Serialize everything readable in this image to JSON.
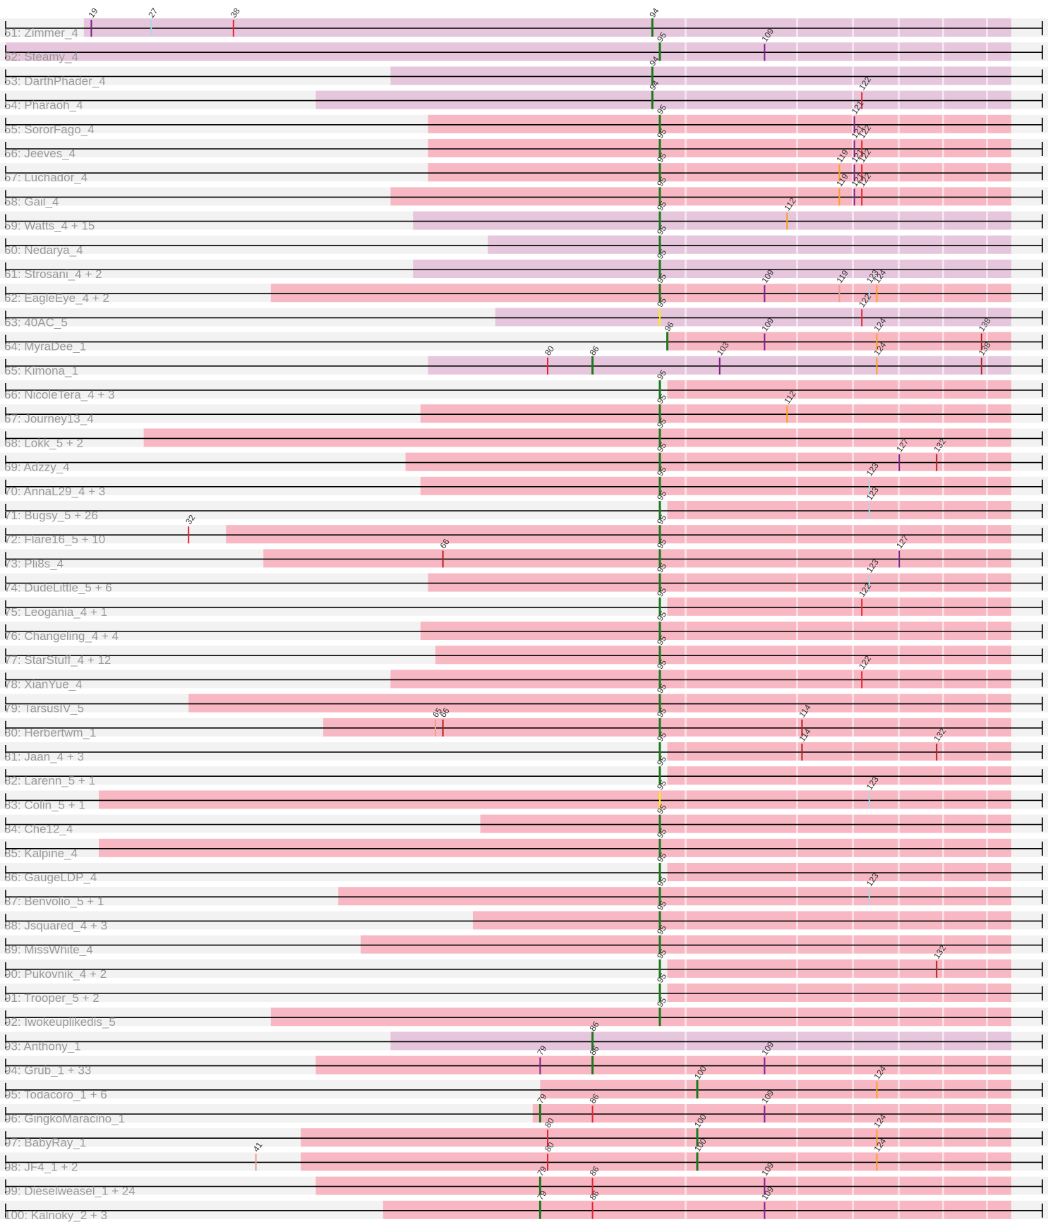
{
  "colors": {
    "band": "#f2f2f2",
    "pink": "#f7b8c4",
    "lavender": "#e6c6dc",
    "line": "#000000",
    "label": "#9a9a9a"
  },
  "mark_colors": {
    "green": "#1b7a1b",
    "purple": "#7f1f8a",
    "red": "#e8202e",
    "orange": "#ffa020",
    "lightblue": "#a8d8ea",
    "darkred": "#b22222",
    "yellow": "#ffee00",
    "salmon": "#e8a08a"
  },
  "rows": [
    {
      "label": "51: Zimmer_4",
      "bar": "lavender",
      "from": 18,
      "marks": [
        [
          19,
          "purple"
        ],
        [
          27,
          "lightblue"
        ],
        [
          38,
          "red"
        ],
        [
          94,
          "green"
        ]
      ]
    },
    {
      "label": "52: Steamy_4",
      "bar": "lavender",
      "from": -50,
      "marks": [
        [
          95,
          "green"
        ],
        [
          109,
          "purple"
        ]
      ]
    },
    {
      "label": "53: DarthPhader_4",
      "bar": "lavender",
      "from": 59,
      "marks": [
        [
          94,
          "green"
        ]
      ]
    },
    {
      "label": "54: Pharaoh_4",
      "bar": "lavender",
      "from": 49,
      "marks": [
        [
          94,
          "green"
        ],
        [
          122,
          "red"
        ]
      ]
    },
    {
      "label": "55: SororFago_4",
      "bar": "pink",
      "from": 64,
      "marks": [
        [
          95,
          "green"
        ],
        [
          121,
          "purple"
        ]
      ]
    },
    {
      "label": "56: Jeeves_4",
      "bar": "pink",
      "from": 64,
      "marks": [
        [
          95,
          "green"
        ],
        [
          121,
          "purple"
        ],
        [
          122,
          "red"
        ]
      ]
    },
    {
      "label": "57: Luchador_4",
      "bar": "pink",
      "from": 64,
      "marks": [
        [
          95,
          "green"
        ],
        [
          119,
          "orange"
        ],
        [
          121,
          "purple"
        ],
        [
          122,
          "red"
        ]
      ]
    },
    {
      "label": "58: Gail_4",
      "bar": "pink",
      "from": 59,
      "marks": [
        [
          95,
          "green"
        ],
        [
          119,
          "orange"
        ],
        [
          121,
          "purple"
        ],
        [
          122,
          "red"
        ]
      ]
    },
    {
      "label": "59: Watts_4 + 15",
      "bar": "lavender",
      "from": 62,
      "marks": [
        [
          95,
          "green"
        ],
        [
          112,
          "orange"
        ]
      ]
    },
    {
      "label": "60: Nedarya_4",
      "bar": "lavender",
      "from": 72,
      "marks": [
        [
          95,
          "green"
        ]
      ]
    },
    {
      "label": "61: Strosani_4 + 2",
      "bar": "lavender",
      "from": 62,
      "marks": [
        [
          95,
          "green"
        ]
      ]
    },
    {
      "label": "62: EagleEye_4 + 2",
      "bar": "pink",
      "from": 43,
      "marks": [
        [
          95,
          "green"
        ],
        [
          109,
          "purple"
        ],
        [
          119,
          "salmon"
        ],
        [
          123,
          "lightblue"
        ],
        [
          124,
          "orange"
        ]
      ]
    },
    {
      "label": "63: 40AC_5",
      "bar": "lavender",
      "from": 73,
      "marks": [
        [
          95,
          "yellow"
        ],
        [
          122,
          "red"
        ]
      ]
    },
    {
      "label": "64: MyraDee_1",
      "bar": "pink",
      "from": 96,
      "marks": [
        [
          96,
          "green"
        ],
        [
          109,
          "purple"
        ],
        [
          124,
          "orange"
        ],
        [
          138,
          "darkred"
        ]
      ]
    },
    {
      "label": "65: Kimona_1",
      "bar": "lavender",
      "from": 64,
      "marks": [
        [
          80,
          "red"
        ],
        [
          86,
          "green"
        ],
        [
          103,
          "purple"
        ],
        [
          124,
          "orange"
        ],
        [
          138,
          "darkred"
        ]
      ]
    },
    {
      "label": "66: NicoleTera_4 + 3",
      "bar": "pink",
      "from": 96,
      "marks": [
        [
          95,
          "green"
        ]
      ]
    },
    {
      "label": "67: Journey13_4",
      "bar": "pink",
      "from": 63,
      "marks": [
        [
          95,
          "green"
        ],
        [
          112,
          "orange"
        ]
      ]
    },
    {
      "label": "68: Lokk_5 + 2",
      "bar": "pink",
      "from": 26,
      "marks": [
        [
          95,
          "green"
        ]
      ]
    },
    {
      "label": "69: Adzzy_4",
      "bar": "pink",
      "from": 61,
      "marks": [
        [
          95,
          "green"
        ],
        [
          127,
          "purple"
        ],
        [
          132,
          "darkred"
        ]
      ]
    },
    {
      "label": "70: AnnaL29_4 + 3",
      "bar": "pink",
      "from": 63,
      "marks": [
        [
          95,
          "green"
        ],
        [
          123,
          "lightblue"
        ]
      ]
    },
    {
      "label": "71: Bugsy_5 + 26",
      "bar": "pink",
      "from": 96,
      "marks": [
        [
          95,
          "green"
        ],
        [
          123,
          "lightblue"
        ]
      ]
    },
    {
      "label": "72: Flare16_5 + 10",
      "bar": "pink",
      "from": 37,
      "marks": [
        [
          32,
          "red"
        ],
        [
          95,
          "green"
        ]
      ]
    },
    {
      "label": "73: Pli8s_4",
      "bar": "pink",
      "from": 42,
      "marks": [
        [
          66,
          "darkred"
        ],
        [
          95,
          "green"
        ],
        [
          127,
          "purple"
        ]
      ]
    },
    {
      "label": "74: DudeLittle_5 + 6",
      "bar": "pink",
      "from": 64,
      "marks": [
        [
          95,
          "green"
        ],
        [
          123,
          "lightblue"
        ]
      ]
    },
    {
      "label": "75: Leogania_4 + 1",
      "bar": "pink",
      "from": 96,
      "marks": [
        [
          95,
          "green"
        ],
        [
          122,
          "red"
        ]
      ]
    },
    {
      "label": "76: Changeling_4 + 4",
      "bar": "pink",
      "from": 63,
      "marks": [
        [
          95,
          "green"
        ]
      ]
    },
    {
      "label": "77: StarStuff_4 + 12",
      "bar": "pink",
      "from": 65,
      "marks": [
        [
          95,
          "green"
        ]
      ]
    },
    {
      "label": "78: XianYue_4",
      "bar": "pink",
      "from": 59,
      "marks": [
        [
          95,
          "green"
        ],
        [
          122,
          "red"
        ]
      ]
    },
    {
      "label": "79: TarsusIV_5",
      "bar": "pink",
      "from": 32,
      "marks": [
        [
          95,
          "green"
        ]
      ]
    },
    {
      "label": "80: Herbertwm_1",
      "bar": "pink",
      "from": 50,
      "marks": [
        [
          65,
          "salmon"
        ],
        [
          66,
          "darkred"
        ],
        [
          95,
          "green"
        ],
        [
          114,
          "darkred"
        ]
      ]
    },
    {
      "label": "81: Jaan_4 + 3",
      "bar": "pink",
      "from": 96,
      "marks": [
        [
          95,
          "green"
        ],
        [
          114,
          "darkred"
        ],
        [
          132,
          "darkred"
        ]
      ]
    },
    {
      "label": "82: Larenn_5 + 1",
      "bar": "pink",
      "from": 96,
      "marks": [
        [
          95,
          "green"
        ]
      ]
    },
    {
      "label": "83: Colin_5 + 1",
      "bar": "pink",
      "from": 20,
      "marks": [
        [
          95,
          "yellow"
        ],
        [
          123,
          "lightblue"
        ]
      ]
    },
    {
      "label": "84: Che12_4",
      "bar": "pink",
      "from": 71,
      "marks": [
        [
          95,
          "green"
        ]
      ]
    },
    {
      "label": "85: Kalpine_4",
      "bar": "pink",
      "from": 20,
      "marks": [
        [
          95,
          "green"
        ]
      ]
    },
    {
      "label": "86: GaugeLDP_4",
      "bar": "pink",
      "from": 96,
      "marks": [
        [
          95,
          "green"
        ]
      ]
    },
    {
      "label": "87: Benvolio_5 + 1",
      "bar": "pink",
      "from": 52,
      "marks": [
        [
          95,
          "green"
        ],
        [
          123,
          "lightblue"
        ]
      ]
    },
    {
      "label": "88: Jsquared_4 + 3",
      "bar": "pink",
      "from": 70,
      "marks": [
        [
          95,
          "green"
        ]
      ]
    },
    {
      "label": "89: MissWhite_4",
      "bar": "pink",
      "from": 55,
      "marks": [
        [
          95,
          "green"
        ]
      ]
    },
    {
      "label": "90: Pukovnik_4 + 2",
      "bar": "pink",
      "from": 96,
      "marks": [
        [
          95,
          "green"
        ],
        [
          132,
          "darkred"
        ]
      ]
    },
    {
      "label": "91: Trooper_5 + 2",
      "bar": "pink",
      "from": 96,
      "marks": [
        [
          95,
          "green"
        ]
      ]
    },
    {
      "label": "92: Iwokeuplikedis_5",
      "bar": "pink",
      "from": 43,
      "marks": [
        [
          95,
          "green"
        ]
      ]
    },
    {
      "label": "93: Anthony_1",
      "bar": "lavender",
      "from": 59,
      "marks": [
        [
          86,
          "green"
        ]
      ]
    },
    {
      "label": "94: Grub_1 + 33",
      "bar": "pink",
      "from": 49,
      "marks": [
        [
          79,
          "purple"
        ],
        [
          86,
          "green"
        ],
        [
          109,
          "purple"
        ]
      ]
    },
    {
      "label": "95: Todacoro_1 + 6",
      "bar": "pink",
      "from": 79,
      "marks": [
        [
          100,
          "green"
        ],
        [
          124,
          "orange"
        ]
      ]
    },
    {
      "label": "96: GingkoMaracino_1",
      "bar": "pink",
      "from": 78,
      "marks": [
        [
          79,
          "green"
        ],
        [
          86,
          "red"
        ],
        [
          109,
          "purple"
        ]
      ]
    },
    {
      "label": "97: BabyRay_1",
      "bar": "pink",
      "from": 47,
      "marks": [
        [
          80,
          "red"
        ],
        [
          100,
          "green"
        ],
        [
          124,
          "orange"
        ]
      ]
    },
    {
      "label": "98: JF4_1 + 2",
      "bar": "pink",
      "from": 47,
      "marks": [
        [
          41,
          "salmon"
        ],
        [
          80,
          "red"
        ],
        [
          100,
          "green"
        ],
        [
          124,
          "orange"
        ]
      ]
    },
    {
      "label": "99: Dieselweasel_1 + 24",
      "bar": "pink",
      "from": 49,
      "marks": [
        [
          79,
          "green"
        ],
        [
          86,
          "red"
        ],
        [
          109,
          "purple"
        ]
      ]
    },
    {
      "label": "100: Kalnoky_2 + 3",
      "bar": "pink",
      "from": 58,
      "marks": [
        [
          79,
          "green"
        ],
        [
          86,
          "red"
        ],
        [
          109,
          "purple"
        ]
      ]
    }
  ]
}
